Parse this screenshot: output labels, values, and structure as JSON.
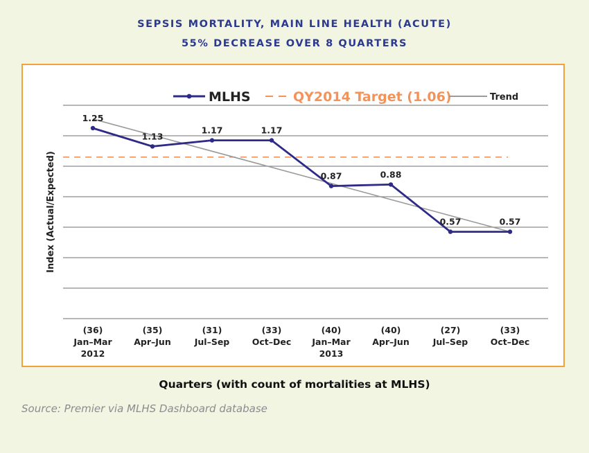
{
  "title": "SEPSIS MORTALITY, MAIN LINE HEALTH (ACUTE)",
  "subtitle": "55% DECREASE OVER 8 QUARTERS",
  "source": "Source: Premier via MLHS Dashboard database",
  "colors": {
    "title": "#2b3990",
    "series": "#2e2a87",
    "target": "#f3935a",
    "trend": "#9a9a9a",
    "frame": "#f3a23a",
    "background": "#f2f5e2"
  },
  "chart_data": {
    "type": "line",
    "xlabel": "Quarters (with count of mortalities at MLHS)",
    "ylabel": "Index (Actual/Expected)",
    "categories": [
      {
        "count": "(36)",
        "label": "Jan–Mar",
        "year": "2012"
      },
      {
        "count": "(35)",
        "label": "Apr–Jun",
        "year": ""
      },
      {
        "count": "(31)",
        "label": "Jul–Sep",
        "year": ""
      },
      {
        "count": "(33)",
        "label": "Oct–Dec",
        "year": ""
      },
      {
        "count": "(40)",
        "label": "Jan–Mar",
        "year": "2013"
      },
      {
        "count": "(40)",
        "label": "Apr–Jun",
        "year": ""
      },
      {
        "count": "(27)",
        "label": "Jul–Sep",
        "year": ""
      },
      {
        "count": "(33)",
        "label": "Oct–Dec",
        "year": ""
      }
    ],
    "series": [
      {
        "name": "MLHS",
        "values": [
          1.25,
          1.13,
          1.17,
          1.17,
          0.87,
          0.88,
          0.57,
          0.57
        ],
        "labels": [
          "1.25",
          "1.13",
          "1.17",
          "1.17",
          "0.87",
          "0.88",
          "0.57",
          "0.57"
        ]
      }
    ],
    "target": {
      "name": "QY2014 Target (1.06)",
      "value": 1.06
    },
    "trend": {
      "name": "Trend",
      "start": 1.31,
      "end": 0.57
    },
    "ylim": [
      0.0,
      1.4
    ],
    "gridlines": [
      0.0,
      0.2,
      0.4,
      0.6,
      0.8,
      1.0,
      1.2,
      1.4
    ],
    "grid": true,
    "legend_position": "top"
  }
}
